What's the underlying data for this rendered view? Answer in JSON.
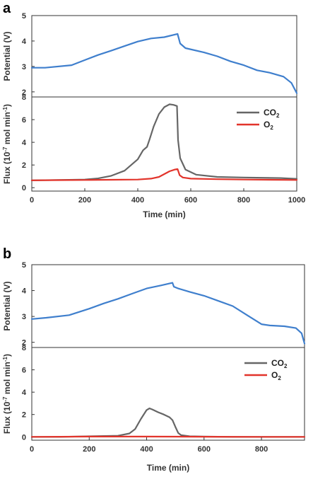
{
  "chart_data": [
    {
      "panel": "a",
      "type": "line",
      "xlabel": "Time (min)",
      "xlim": [
        0,
        1000
      ],
      "xticks": [
        "0",
        "200",
        "400",
        "600",
        "800",
        "1000"
      ],
      "subplots": [
        {
          "ylabel": "Potential (V)",
          "ylim": [
            1.8,
            5
          ],
          "yticks": [
            "2",
            "3",
            "4",
            "5"
          ],
          "series": [
            {
              "color": "#3f7fcd",
              "x": [
                0,
                50,
                150,
                200,
                250,
                300,
                350,
                400,
                450,
                500,
                550,
                560,
                580,
                650,
                700,
                750,
                800,
                850,
                900,
                950,
                980,
                1000
              ],
              "y": [
                2.95,
                2.95,
                3.05,
                3.25,
                3.45,
                3.62,
                3.8,
                3.98,
                4.1,
                4.15,
                4.28,
                3.9,
                3.72,
                3.55,
                3.4,
                3.2,
                3.05,
                2.85,
                2.75,
                2.6,
                2.35,
                1.95
              ]
            }
          ]
        },
        {
          "ylabel_parts": [
            "Flux (10",
            "-7",
            " mol min",
            "-1",
            ")"
          ],
          "ylim": [
            -0.3,
            8
          ],
          "yticks": [
            "0",
            "2",
            "4",
            "6",
            "8"
          ],
          "legend": [
            "CO",
            "2",
            "O",
            "2"
          ],
          "legend_position": "top-right",
          "series": [
            {
              "name": "CO2",
              "color": "#666666",
              "x": [
                0,
                100,
                200,
                250,
                300,
                350,
                400,
                420,
                435,
                445,
                460,
                480,
                500,
                520,
                535,
                548,
                552,
                560,
                580,
                620,
                700,
                800,
                940,
                1000
              ],
              "y": [
                0.65,
                0.68,
                0.72,
                0.82,
                1.05,
                1.5,
                2.5,
                3.3,
                3.6,
                4.3,
                5.4,
                6.5,
                7.1,
                7.35,
                7.3,
                7.2,
                4.2,
                2.6,
                1.6,
                1.15,
                0.95,
                0.9,
                0.85,
                0.78
              ]
            },
            {
              "name": "O2",
              "color": "#e2342b",
              "x": [
                0,
                100,
                200,
                300,
                400,
                450,
                480,
                500,
                520,
                540,
                550,
                558,
                570,
                600,
                700,
                800,
                900,
                1000
              ],
              "y": [
                0.65,
                0.67,
                0.68,
                0.7,
                0.72,
                0.8,
                0.95,
                1.2,
                1.45,
                1.6,
                1.65,
                1.1,
                0.9,
                0.8,
                0.75,
                0.72,
                0.7,
                0.68
              ]
            }
          ]
        }
      ]
    },
    {
      "panel": "b",
      "type": "line",
      "xlabel": "Time (min)",
      "xlim": [
        0,
        950
      ],
      "xticks": [
        "0",
        "200",
        "400",
        "600",
        "800"
      ],
      "subplots": [
        {
          "ylabel": "Potential (V)",
          "ylim": [
            1.8,
            5
          ],
          "yticks": [
            "2",
            "3",
            "4",
            "5"
          ],
          "series": [
            {
              "color": "#3f7fcd",
              "x": [
                0,
                50,
                130,
                200,
                250,
                300,
                350,
                400,
                450,
                490,
                495,
                510,
                550,
                600,
                650,
                700,
                750,
                800,
                830,
                880,
                920,
                940,
                950
              ],
              "y": [
                2.9,
                2.95,
                3.05,
                3.3,
                3.5,
                3.68,
                3.88,
                4.08,
                4.2,
                4.3,
                4.15,
                4.08,
                3.95,
                3.8,
                3.6,
                3.4,
                3.05,
                2.7,
                2.65,
                2.62,
                2.55,
                2.35,
                1.95
              ]
            }
          ]
        },
        {
          "ylabel_parts": [
            "Flux (10",
            "-7",
            " mol min",
            "-1",
            ")"
          ],
          "ylim": [
            -0.3,
            8
          ],
          "yticks": [
            "0",
            "2",
            "4",
            "6",
            "8"
          ],
          "legend": [
            "CO",
            "2",
            "O",
            "2"
          ],
          "legend_position": "top-right",
          "series": [
            {
              "name": "CO2",
              "color": "#666666",
              "x": [
                0,
                100,
                200,
                300,
                340,
                360,
                380,
                400,
                410,
                420,
                440,
                460,
                480,
                490,
                500,
                510,
                520,
                550,
                600,
                700,
                800,
                950
              ],
              "y": [
                0.0,
                0.0,
                0.05,
                0.1,
                0.3,
                0.7,
                1.6,
                2.4,
                2.55,
                2.45,
                2.2,
                2.0,
                1.75,
                1.5,
                0.9,
                0.35,
                0.15,
                0.05,
                0.02,
                0.0,
                0.0,
                0.0
              ]
            },
            {
              "name": "O2",
              "color": "#e2342b",
              "x": [
                0,
                200,
                400,
                600,
                800,
                950
              ],
              "y": [
                0.0,
                0.02,
                0.02,
                0.01,
                0.0,
                0.0
              ]
            }
          ]
        }
      ]
    }
  ]
}
